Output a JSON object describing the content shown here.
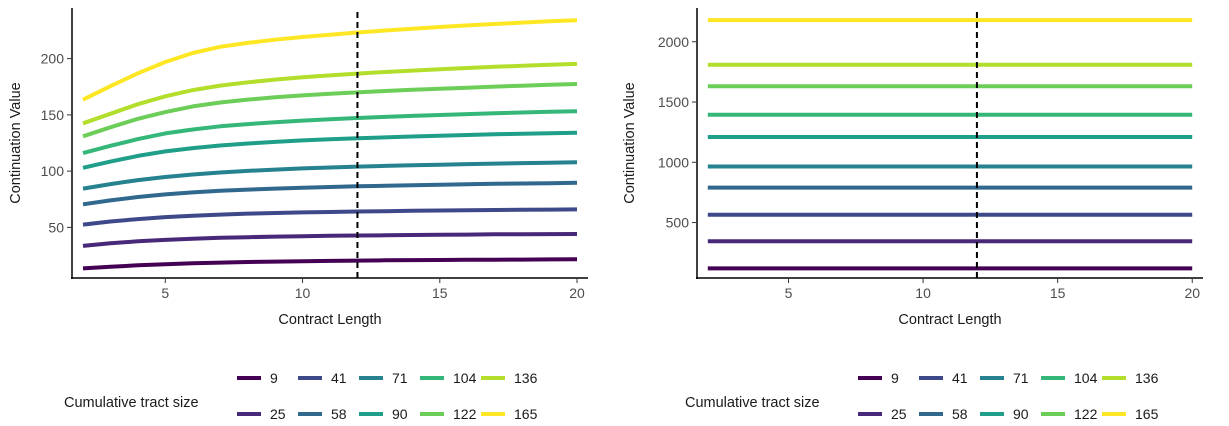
{
  "chart_data": [
    {
      "type": "line",
      "xlabel": "Contract Length",
      "ylabel": "Continuation Value",
      "xlim": [
        1.6,
        20.4
      ],
      "ylim": [
        5,
        245
      ],
      "xticks": [
        5,
        10,
        15,
        20
      ],
      "yticks": [
        50,
        100,
        150,
        200
      ],
      "grid": false,
      "reference_line": {
        "x": 12,
        "style": "dashed"
      },
      "x": [
        2,
        3,
        4,
        5,
        6,
        7,
        8,
        9,
        10,
        11,
        12,
        13,
        14,
        15,
        16,
        17,
        18,
        19,
        20
      ],
      "series": [
        {
          "name": "9",
          "color": "#440154",
          "values": [
            13.5,
            15.0,
            16.3,
            17.3,
            18.1,
            18.7,
            19.2,
            19.6,
            19.9,
            20.2,
            20.5,
            20.7,
            20.9,
            21.0,
            21.2,
            21.3,
            21.4,
            21.5,
            21.6
          ]
        },
        {
          "name": "25",
          "color": "#482878",
          "values": [
            33.5,
            35.8,
            37.6,
            38.9,
            39.9,
            40.7,
            41.3,
            41.8,
            42.2,
            42.5,
            42.8,
            43.0,
            43.2,
            43.4,
            43.6,
            43.8,
            43.9,
            44.0,
            44.1
          ]
        },
        {
          "name": "41",
          "color": "#3E4989",
          "values": [
            52.5,
            55.2,
            57.4,
            59.1,
            60.4,
            61.4,
            62.2,
            62.8,
            63.3,
            63.7,
            64.1,
            64.4,
            64.7,
            65.0,
            65.2,
            65.4,
            65.6,
            65.8,
            66.0
          ]
        },
        {
          "name": "58",
          "color": "#31688E",
          "values": [
            70.5,
            74.0,
            77.0,
            79.3,
            81.1,
            82.5,
            83.6,
            84.5,
            85.3,
            85.9,
            86.5,
            87.0,
            87.5,
            87.9,
            88.3,
            88.7,
            89.0,
            89.3,
            89.6
          ]
        },
        {
          "name": "71",
          "color": "#26828E",
          "values": [
            84.5,
            88.5,
            92.0,
            94.8,
            97.0,
            98.8,
            100.2,
            101.4,
            102.4,
            103.2,
            104.0,
            104.6,
            105.2,
            105.7,
            106.2,
            106.7,
            107.1,
            107.5,
            107.8
          ]
        },
        {
          "name": "90",
          "color": "#1F9E89",
          "values": [
            103.0,
            108.5,
            113.5,
            117.5,
            120.5,
            122.8,
            124.6,
            126.0,
            127.3,
            128.3,
            129.2,
            130.0,
            130.8,
            131.5,
            132.1,
            132.7,
            133.2,
            133.7,
            134.2
          ]
        },
        {
          "name": "104",
          "color": "#35B779",
          "values": [
            116.0,
            122.5,
            128.5,
            133.5,
            137.0,
            139.8,
            141.8,
            143.5,
            144.9,
            146.1,
            147.2,
            148.2,
            149.1,
            149.9,
            150.7,
            151.4,
            152.1,
            152.7,
            153.3
          ]
        },
        {
          "name": "122",
          "color": "#6DCD59",
          "values": [
            131.0,
            139.0,
            146.5,
            152.5,
            157.5,
            161.0,
            163.6,
            165.6,
            167.3,
            168.7,
            170.0,
            171.2,
            172.3,
            173.3,
            174.2,
            175.1,
            175.9,
            176.7,
            177.4
          ]
        },
        {
          "name": "136",
          "color": "#B4DE2C",
          "values": [
            142.5,
            151.0,
            159.5,
            166.5,
            172.0,
            176.0,
            179.0,
            181.4,
            183.4,
            185.1,
            186.7,
            188.1,
            189.4,
            190.6,
            191.7,
            192.7,
            193.6,
            194.5,
            195.3
          ]
        },
        {
          "name": "165",
          "color": "#FDE725",
          "values": [
            163.5,
            175.5,
            187.0,
            197.0,
            205.0,
            210.5,
            214.0,
            216.8,
            219.2,
            221.3,
            223.2,
            225.0,
            226.6,
            228.1,
            229.5,
            230.8,
            232.0,
            233.2,
            234.2
          ]
        }
      ]
    },
    {
      "type": "line",
      "xlabel": "Contract Length",
      "ylabel": "Continuation Value",
      "xlim": [
        1.6,
        20.4
      ],
      "ylim": [
        40,
        2280
      ],
      "xticks": [
        5,
        10,
        15,
        20
      ],
      "yticks": [
        500,
        1000,
        1500,
        2000
      ],
      "grid": false,
      "reference_line": {
        "x": 12,
        "style": "dashed"
      },
      "x": [
        2,
        20
      ],
      "series": [
        {
          "name": "9",
          "color": "#440154",
          "values": [
            120,
            120
          ]
        },
        {
          "name": "25",
          "color": "#482878",
          "values": [
            345,
            345
          ]
        },
        {
          "name": "41",
          "color": "#3E4989",
          "values": [
            565,
            565
          ]
        },
        {
          "name": "58",
          "color": "#31688E",
          "values": [
            790,
            790
          ]
        },
        {
          "name": "71",
          "color": "#26828E",
          "values": [
            965,
            965
          ]
        },
        {
          "name": "90",
          "color": "#1F9E89",
          "values": [
            1210,
            1210
          ]
        },
        {
          "name": "104",
          "color": "#35B779",
          "values": [
            1395,
            1395
          ]
        },
        {
          "name": "122",
          "color": "#6DCD59",
          "values": [
            1630,
            1630
          ]
        },
        {
          "name": "136",
          "color": "#B4DE2C",
          "values": [
            1810,
            1810
          ]
        },
        {
          "name": "165",
          "color": "#FDE725",
          "values": [
            2180,
            2180
          ]
        }
      ]
    }
  ],
  "legend": {
    "title": "Cumulative tract size",
    "position": "bottom",
    "rows": [
      [
        {
          "label": "9",
          "color": "#440154"
        },
        {
          "label": "41",
          "color": "#3E4989"
        },
        {
          "label": "71",
          "color": "#26828E"
        },
        {
          "label": "104",
          "color": "#35B779"
        },
        {
          "label": "136",
          "color": "#B4DE2C"
        }
      ],
      [
        {
          "label": "25",
          "color": "#482878"
        },
        {
          "label": "58",
          "color": "#31688E"
        },
        {
          "label": "90",
          "color": "#1F9E89"
        },
        {
          "label": "122",
          "color": "#6DCD59"
        },
        {
          "label": "165",
          "color": "#FDE725"
        }
      ]
    ]
  }
}
